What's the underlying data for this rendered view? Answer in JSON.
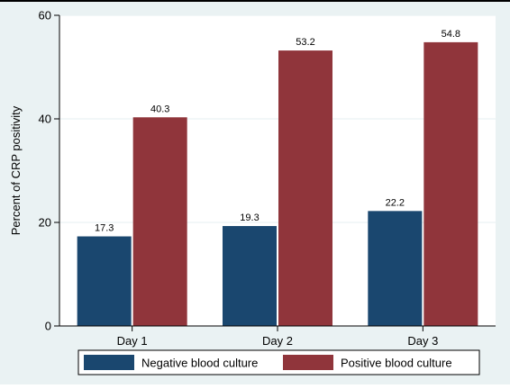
{
  "chart_data": {
    "type": "bar",
    "title": "",
    "xlabel": "",
    "ylabel": "Percent of CRP positivity",
    "categories": [
      "Day 1",
      "Day 2",
      "Day 3"
    ],
    "series": [
      {
        "name": "Negative blood culture",
        "color": "#1a476f",
        "values": [
          17.3,
          19.3,
          22.2
        ],
        "labels": [
          "17.3",
          "19.3",
          "22.2"
        ]
      },
      {
        "name": "Positive blood culture",
        "color": "#90353b",
        "values": [
          40.3,
          53.2,
          54.8
        ],
        "labels": [
          "40.3",
          "53.2",
          "54.8"
        ]
      }
    ],
    "ylim": [
      0,
      60
    ],
    "yticks": [
      0,
      20,
      40,
      60
    ],
    "ytick_labels": [
      "0",
      "20",
      "40",
      "60"
    ],
    "grid": "horizontal",
    "legend_position": "bottom",
    "colors": {
      "plot_background": "#ffffff",
      "outer_background": "#eaf2f3",
      "grid": "#eaf2f3"
    }
  }
}
